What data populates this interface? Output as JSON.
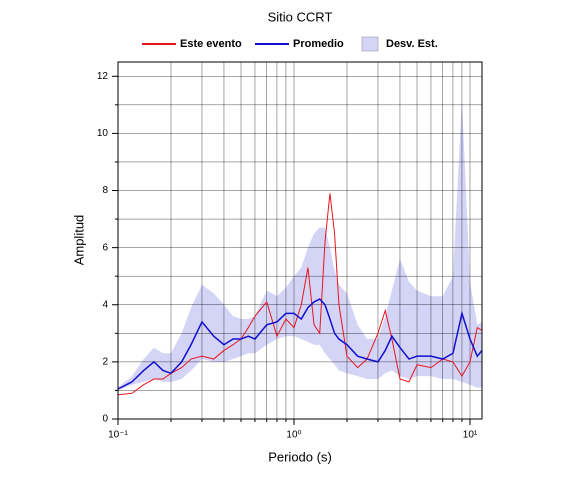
{
  "chart_data": {
    "type": "line",
    "title": "Sitio CCRT",
    "xlabel": "Periodo (s)",
    "ylabel": "Amplitud",
    "log_x": true,
    "grid": true,
    "xlim": [
      0.1,
      11.7
    ],
    "ylim": [
      0,
      12.5
    ],
    "xticks": [
      {
        "value": 0.1,
        "label": "10⁻¹"
      },
      {
        "value": 1,
        "label": "10⁰"
      },
      {
        "value": 10,
        "label": "10¹"
      }
    ],
    "x_minor_ticks": [
      0.2,
      0.3,
      0.4,
      0.5,
      0.6,
      0.7,
      0.8,
      0.9,
      2,
      3,
      4,
      5,
      6,
      7,
      8,
      9
    ],
    "yticks": [
      0,
      2,
      4,
      6,
      8,
      10,
      12
    ],
    "y_minor_ticks": [
      1,
      3,
      5,
      7,
      9,
      11
    ],
    "x": [
      0.1,
      0.12,
      0.14,
      0.16,
      0.18,
      0.2,
      0.23,
      0.26,
      0.3,
      0.35,
      0.4,
      0.45,
      0.5,
      0.55,
      0.6,
      0.7,
      0.8,
      0.9,
      1.0,
      1.1,
      1.2,
      1.3,
      1.4,
      1.5,
      1.6,
      1.7,
      1.8,
      2.0,
      2.3,
      2.6,
      3.0,
      3.3,
      3.6,
      4.0,
      4.5,
      5,
      6,
      7,
      8,
      9,
      10,
      11,
      11.7
    ],
    "band": {
      "name": "Desv. Est.",
      "color": "#d4d4f7",
      "lower": [
        1.0,
        1.2,
        1.3,
        1.4,
        1.3,
        1.3,
        1.4,
        1.7,
        2.1,
        2.0,
        2.0,
        2.1,
        2.2,
        2.3,
        2.3,
        2.6,
        2.8,
        2.9,
        2.9,
        2.8,
        2.7,
        2.6,
        2.6,
        2.3,
        2.1,
        1.9,
        1.7,
        1.6,
        1.5,
        1.4,
        1.4,
        1.6,
        1.7,
        1.5,
        1.4,
        1.5,
        1.5,
        1.4,
        1.4,
        1.3,
        1.2,
        1.1,
        1.1
      ],
      "upper": [
        1.1,
        1.5,
        2.1,
        2.5,
        2.3,
        2.3,
        3.0,
        3.9,
        4.7,
        4.4,
        4.0,
        3.6,
        3.5,
        3.5,
        3.6,
        4.5,
        4.3,
        4.6,
        5.0,
        5.3,
        6.0,
        6.5,
        6.7,
        6.7,
        6.0,
        5.2,
        4.7,
        4.4,
        3.3,
        2.8,
        2.8,
        3.6,
        4.5,
        5.6,
        4.8,
        4.5,
        4.3,
        4.3,
        5.0,
        11.2,
        4.8,
        3.3,
        3.4
      ]
    },
    "series": [
      {
        "name": "Este evento",
        "color": "#e8141c",
        "values": [
          0.85,
          0.9,
          1.2,
          1.4,
          1.4,
          1.6,
          1.8,
          2.1,
          2.2,
          2.1,
          2.4,
          2.6,
          2.8,
          3.2,
          3.6,
          4.1,
          2.9,
          3.5,
          3.2,
          4.0,
          5.3,
          3.3,
          3.0,
          6.2,
          7.9,
          6.5,
          4.0,
          2.2,
          1.8,
          2.1,
          3.0,
          3.8,
          2.8,
          1.4,
          1.3,
          1.9,
          1.8,
          2.1,
          2.0,
          1.5,
          2.0,
          3.2,
          3.1
        ]
      },
      {
        "name": "Promedio",
        "color": "#1010d0",
        "values": [
          1.05,
          1.3,
          1.7,
          2.0,
          1.7,
          1.6,
          2.0,
          2.6,
          3.4,
          2.9,
          2.6,
          2.8,
          2.8,
          2.9,
          2.8,
          3.3,
          3.4,
          3.7,
          3.7,
          3.5,
          3.9,
          4.1,
          4.2,
          4.0,
          3.5,
          3.0,
          2.8,
          2.6,
          2.2,
          2.1,
          2.0,
          2.4,
          2.9,
          2.5,
          2.1,
          2.2,
          2.2,
          2.1,
          2.3,
          3.7,
          2.8,
          2.2,
          2.4
        ]
      }
    ]
  }
}
